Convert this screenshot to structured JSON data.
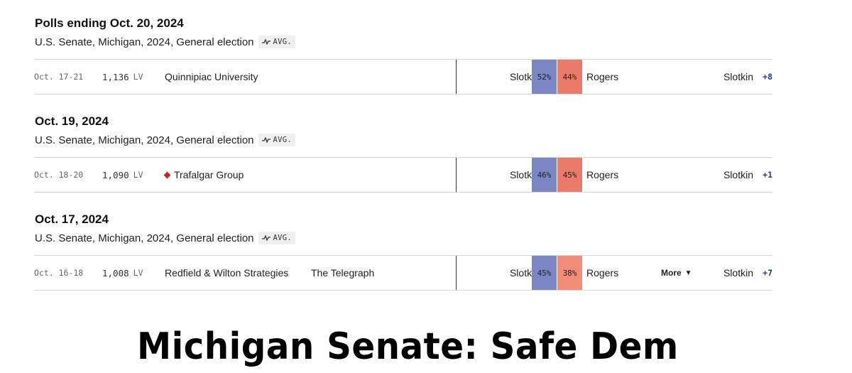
{
  "groups": [
    {
      "date": "Polls ending Oct. 20, 2024",
      "subtitle": "U.S. Senate, Michigan, 2024, General election",
      "avg_label": "AVG.",
      "poll": {
        "dates": "Oct. 17-21",
        "sample": "1,136",
        "population": "LV",
        "pollster": "Quinnipiac University",
        "sponsor": "",
        "dem_name": "Slotkin",
        "dem_pct": "52%",
        "rep_name": "Rogers",
        "rep_pct": "44%",
        "leader": "Slotkin",
        "margin": "+8"
      }
    },
    {
      "date": "Oct. 19, 2024",
      "subtitle": "U.S. Senate, Michigan, 2024, General election",
      "avg_label": "AVG.",
      "poll": {
        "dates": "Oct. 18-20",
        "sample": "1,090",
        "population": "LV",
        "pollster": "Trafalgar Group",
        "pollster_icon": "red-diamond-icon",
        "sponsor": "",
        "dem_name": "Slotkin",
        "dem_pct": "46%",
        "rep_name": "Rogers",
        "rep_pct": "45%",
        "leader": "Slotkin",
        "margin": "+1"
      }
    },
    {
      "date": "Oct. 17, 2024",
      "subtitle": "U.S. Senate, Michigan, 2024, General election",
      "avg_label": "AVG.",
      "poll": {
        "dates": "Oct. 16-18",
        "sample": "1,008",
        "population": "LV",
        "pollster": "Redfield & Wilton Strategies",
        "sponsor": "The Telegraph",
        "dem_name": "Slotkin",
        "dem_pct": "45%",
        "rep_name": "Rogers",
        "rep_pct": "38%",
        "more_label": "More",
        "leader": "Slotkin",
        "margin": "+7"
      }
    }
  ],
  "headline": "Michigan Senate: Safe Dem",
  "colors": {
    "dem": "#7b86c4",
    "rep": "#ea7b6a",
    "margin_text": "#2c3a8a",
    "pollster_diamond": "#cc1f1f"
  }
}
